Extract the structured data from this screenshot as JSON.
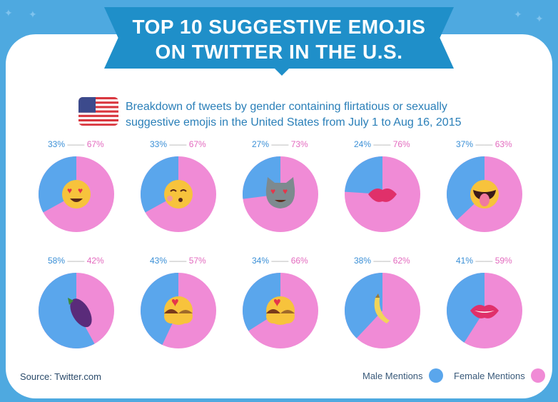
{
  "title_lines": [
    "TOP 10 SUGGESTIVE EMOJIS",
    "ON TWITTER IN THE U.S."
  ],
  "subtitle_lines": [
    "Breakdown of tweets by gender containing flirtatious or sexually",
    "suggestive emojis in the United States from July 1 to Aug 16, 2015"
  ],
  "source": "Source: Twitter.com",
  "legend": {
    "male": "Male Mentions",
    "female": "Female Mentions"
  },
  "colors": {
    "male": "#5aa6ec",
    "female": "#f08bd6",
    "banner": "#1f8fc9",
    "background": "#4ea9e0"
  },
  "chart_data": {
    "type": "pie",
    "title": "TOP 10 SUGGESTIVE EMOJIS ON TWITTER IN THE U.S.",
    "series_names": [
      "Male Mentions",
      "Female Mentions"
    ],
    "pies": [
      {
        "icon": "heart-eyes-face-icon",
        "male": 33,
        "female": 67,
        "male_label": "33%",
        "female_label": "67%"
      },
      {
        "icon": "kissing-face-icon",
        "male": 33,
        "female": 67,
        "male_label": "33%",
        "female_label": "67%"
      },
      {
        "icon": "heart-eyes-cat-icon",
        "male": 27,
        "female": 73,
        "male_label": "27%",
        "female_label": "73%"
      },
      {
        "icon": "kiss-mark-icon",
        "male": 24,
        "female": 76,
        "male_label": "24%",
        "female_label": "76%"
      },
      {
        "icon": "tongue-out-icon",
        "male": 37,
        "female": 63,
        "male_label": "37%",
        "female_label": "63%"
      },
      {
        "icon": "eggplant-icon",
        "male": 58,
        "female": 42,
        "male_label": "58%",
        "female_label": "42%"
      },
      {
        "icon": "kissing-couple-icon",
        "male": 43,
        "female": 57,
        "male_label": "43%",
        "female_label": "57%"
      },
      {
        "icon": "couple-with-heart-icon",
        "male": 34,
        "female": 66,
        "male_label": "34%",
        "female_label": "66%"
      },
      {
        "icon": "banana-icon",
        "male": 38,
        "female": 62,
        "male_label": "38%",
        "female_label": "62%"
      },
      {
        "icon": "lips-icon",
        "male": 41,
        "female": 59,
        "male_label": "41%",
        "female_label": "59%"
      }
    ],
    "legend_position": "bottom-right"
  }
}
